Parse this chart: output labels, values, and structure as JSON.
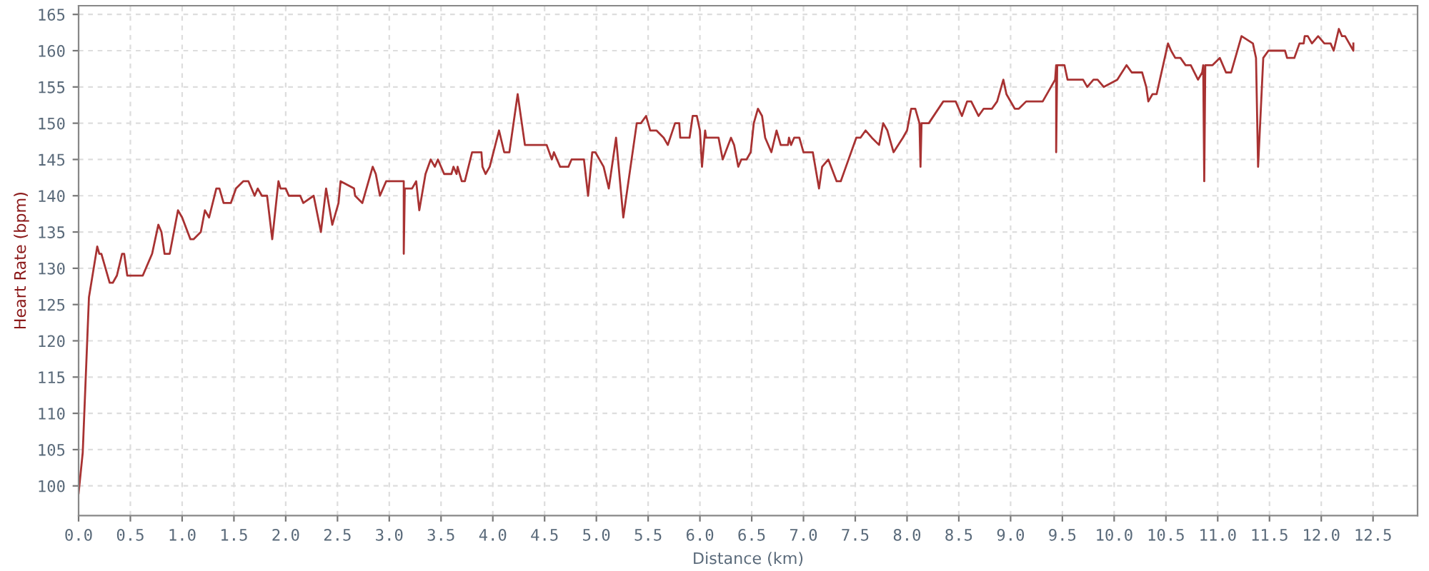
{
  "chart_data": {
    "type": "line",
    "xlabel": "Distance (km)",
    "ylabel": "Heart Rate (bpm)",
    "x": [
      0,
      0.04,
      0.1,
      0.18,
      0.2,
      0.22,
      0.26,
      0.3,
      0.33,
      0.37,
      0.42,
      0.44,
      0.47,
      0.62,
      0.71,
      0.77,
      0.8,
      0.83,
      0.88,
      0.96,
      1.0,
      1.08,
      1.11,
      1.18,
      1.22,
      1.26,
      1.33,
      1.36,
      1.4,
      1.47,
      1.52,
      1.59,
      1.64,
      1.7,
      1.73,
      1.77,
      1.82,
      1.87,
      1.93,
      1.95,
      2.0,
      2.03,
      2.14,
      2.17,
      2.27,
      2.34,
      2.39,
      2.45,
      2.51,
      2.53,
      2.66,
      2.67,
      2.74,
      2.84,
      2.87,
      2.91,
      2.97,
      3.14,
      3.14,
      3.15,
      3.22,
      3.26,
      3.29,
      3.35,
      3.4,
      3.44,
      3.47,
      3.53,
      3.6,
      3.62,
      3.65,
      3.66,
      3.7,
      3.73,
      3.8,
      3.89,
      3.9,
      3.93,
      3.97,
      4.06,
      4.11,
      4.16,
      4.24,
      4.31,
      4.52,
      4.57,
      4.59,
      4.65,
      4.73,
      4.76,
      4.88,
      4.92,
      4.96,
      4.99,
      5.07,
      5.12,
      5.19,
      5.26,
      5.3,
      5.39,
      5.43,
      5.48,
      5.52,
      5.58,
      5.65,
      5.69,
      5.76,
      5.8,
      5.81,
      5.9,
      5.93,
      5.97,
      6.0,
      6.02,
      6.05,
      6.06,
      6.18,
      6.22,
      6.3,
      6.33,
      6.37,
      6.4,
      6.45,
      6.49,
      6.52,
      6.56,
      6.6,
      6.63,
      6.69,
      6.74,
      6.78,
      6.85,
      6.86,
      6.88,
      6.91,
      6.96,
      7.0,
      7.09,
      7.15,
      7.18,
      7.24,
      7.32,
      7.36,
      7.41,
      7.51,
      7.55,
      7.6,
      7.66,
      7.73,
      7.77,
      7.81,
      7.87,
      7.96,
      8.0,
      8.04,
      8.08,
      8.12,
      8.13,
      8.14,
      8.21,
      8.35,
      8.47,
      8.53,
      8.58,
      8.62,
      8.69,
      8.74,
      8.82,
      8.87,
      8.93,
      8.96,
      9.04,
      9.08,
      9.15,
      9.31,
      9.43,
      9.44,
      9.44,
      9.45,
      9.52,
      9.55,
      9.7,
      9.74,
      9.8,
      9.84,
      9.9,
      10.03,
      10.12,
      10.17,
      10.27,
      10.31,
      10.33,
      10.37,
      10.41,
      10.52,
      10.55,
      10.59,
      10.64,
      10.69,
      10.74,
      10.81,
      10.85,
      10.86,
      10.87,
      10.88,
      10.95,
      11.02,
      11.08,
      11.13,
      11.23,
      11.34,
      11.37,
      11.39,
      11.44,
      11.49,
      11.65,
      11.67,
      11.74,
      11.79,
      11.83,
      11.84,
      11.87,
      11.91,
      11.97,
      12.03,
      12.09,
      12.12,
      12.17,
      12.2,
      12.23,
      12.31,
      12.31
    ],
    "series": [
      {
        "color": "#a83232",
        "values": [
          99,
          104.6,
          126,
          133,
          132,
          132,
          130,
          128,
          128,
          129,
          132,
          132,
          129,
          129,
          132,
          136,
          135,
          132,
          132,
          138,
          137,
          134,
          134,
          135,
          138,
          137,
          141,
          141,
          139,
          139,
          141,
          142,
          142,
          140,
          141,
          140,
          140,
          134,
          142,
          141,
          141,
          140,
          140,
          139,
          140,
          135,
          141,
          136,
          139,
          142,
          141,
          140,
          139,
          144,
          143,
          140,
          142,
          142,
          132,
          141,
          141,
          142,
          138,
          143,
          145,
          144,
          145,
          143,
          143,
          144,
          143,
          144,
          142,
          142,
          146,
          146,
          144,
          143,
          144,
          149,
          146,
          146,
          154,
          147,
          147,
          145,
          146,
          144,
          144,
          145,
          145,
          140,
          146,
          146,
          144,
          141,
          148,
          137,
          141,
          150,
          150,
          151,
          149,
          149,
          148,
          147,
          150,
          150,
          148,
          148,
          151,
          151,
          149,
          144,
          149,
          148,
          148,
          145,
          148,
          147,
          144,
          145,
          145,
          146,
          150,
          152,
          151,
          148,
          146,
          149,
          147,
          147,
          148,
          147,
          148,
          148,
          146,
          146,
          141,
          144,
          145,
          142,
          142,
          144,
          148,
          148,
          149,
          148,
          147,
          150,
          149,
          146,
          148,
          149,
          152,
          152,
          150,
          144,
          150,
          150,
          153,
          153,
          151,
          153,
          153,
          151,
          152,
          152,
          153,
          156,
          154,
          152,
          152,
          153,
          153,
          156,
          158,
          146,
          158,
          158,
          156,
          156,
          155,
          156,
          156,
          155,
          156,
          158,
          157,
          157,
          155,
          153,
          154,
          154,
          161,
          160,
          159,
          159,
          158,
          158,
          156,
          157,
          158,
          142,
          158,
          158,
          159,
          157,
          157,
          162,
          161,
          159,
          144,
          159,
          160,
          160,
          159,
          159,
          161,
          161,
          162,
          162,
          161,
          162,
          161,
          161,
          160,
          163,
          162,
          162,
          160,
          161
        ]
      }
    ],
    "xlim": [
      0,
      12.93
    ],
    "ylim": [
      95.9,
      166.2
    ],
    "xticks": [
      {
        "value": 0,
        "label": "0.0"
      },
      0.5,
      {
        "value": 1,
        "label": "1.0"
      },
      1.5,
      {
        "value": 2,
        "label": "2.0"
      },
      2.5,
      {
        "value": 3,
        "label": "3.0"
      },
      3.5,
      {
        "value": 4,
        "label": "4.0"
      },
      4.5,
      {
        "value": 5,
        "label": "5.0"
      },
      5.5,
      {
        "value": 6,
        "label": "6.0"
      },
      6.5,
      {
        "value": 7,
        "label": "7.0"
      },
      7.5,
      {
        "value": 8,
        "label": "8.0"
      },
      8.5,
      {
        "value": 9,
        "label": "9.0"
      },
      9.5,
      {
        "value": 10,
        "label": "10.0"
      },
      10.5,
      {
        "value": 11,
        "label": "11.0"
      },
      11.5,
      {
        "value": 12,
        "label": "12.0"
      },
      12.5
    ],
    "yticks": [
      100,
      105,
      110,
      115,
      120,
      125,
      130,
      135,
      140,
      145,
      150,
      155,
      160,
      165
    ],
    "grid": true,
    "legend": false,
    "marker": "none",
    "line_style": "solid"
  }
}
